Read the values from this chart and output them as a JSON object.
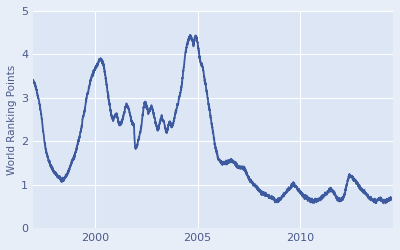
{
  "title": "",
  "ylabel": "World Ranking Points",
  "line_color": "#3d5a9e",
  "axes_facecolor": "#dce6f5",
  "figure_facecolor": "#e8eef8",
  "grid_color": "#ffffff",
  "ylim": [
    0,
    5
  ],
  "yticks": [
    0,
    1,
    2,
    3,
    4,
    5
  ],
  "xticks": [
    2000,
    2005,
    2010
  ],
  "xlim": [
    1997.0,
    2014.5
  ],
  "line_width": 1.3,
  "data_points": [
    [
      1997.0,
      3.4
    ],
    [
      1997.1,
      3.3
    ],
    [
      1997.2,
      3.1
    ],
    [
      1997.3,
      2.9
    ],
    [
      1997.4,
      2.6
    ],
    [
      1997.5,
      2.2
    ],
    [
      1997.6,
      1.85
    ],
    [
      1997.7,
      1.65
    ],
    [
      1997.8,
      1.5
    ],
    [
      1997.9,
      1.4
    ],
    [
      1998.0,
      1.3
    ],
    [
      1998.1,
      1.25
    ],
    [
      1998.2,
      1.2
    ],
    [
      1998.3,
      1.15
    ],
    [
      1998.4,
      1.1
    ],
    [
      1998.5,
      1.12
    ],
    [
      1998.6,
      1.2
    ],
    [
      1998.7,
      1.3
    ],
    [
      1998.8,
      1.4
    ],
    [
      1998.9,
      1.55
    ],
    [
      1999.0,
      1.65
    ],
    [
      1999.1,
      1.8
    ],
    [
      1999.2,
      2.0
    ],
    [
      1999.25,
      2.1
    ],
    [
      1999.3,
      2.2
    ],
    [
      1999.35,
      2.3
    ],
    [
      1999.4,
      2.5
    ],
    [
      1999.45,
      2.6
    ],
    [
      1999.5,
      2.7
    ],
    [
      1999.55,
      2.85
    ],
    [
      1999.6,
      3.0
    ],
    [
      1999.65,
      3.1
    ],
    [
      1999.7,
      3.2
    ],
    [
      1999.75,
      3.3
    ],
    [
      1999.8,
      3.4
    ],
    [
      1999.85,
      3.5
    ],
    [
      1999.9,
      3.55
    ],
    [
      1999.95,
      3.6
    ],
    [
      2000.0,
      3.65
    ],
    [
      2000.05,
      3.7
    ],
    [
      2000.1,
      3.75
    ],
    [
      2000.15,
      3.8
    ],
    [
      2000.2,
      3.85
    ],
    [
      2000.25,
      3.88
    ],
    [
      2000.3,
      3.9
    ],
    [
      2000.35,
      3.85
    ],
    [
      2000.4,
      3.8
    ],
    [
      2000.45,
      3.7
    ],
    [
      2000.5,
      3.55
    ],
    [
      2000.55,
      3.4
    ],
    [
      2000.6,
      3.2
    ],
    [
      2000.65,
      3.05
    ],
    [
      2000.7,
      2.9
    ],
    [
      2000.75,
      2.75
    ],
    [
      2000.8,
      2.6
    ],
    [
      2000.85,
      2.55
    ],
    [
      2000.9,
      2.5
    ],
    [
      2000.95,
      2.55
    ],
    [
      2001.0,
      2.6
    ],
    [
      2001.05,
      2.65
    ],
    [
      2001.1,
      2.55
    ],
    [
      2001.15,
      2.45
    ],
    [
      2001.2,
      2.4
    ],
    [
      2001.25,
      2.38
    ],
    [
      2001.3,
      2.45
    ],
    [
      2001.35,
      2.5
    ],
    [
      2001.4,
      2.6
    ],
    [
      2001.45,
      2.7
    ],
    [
      2001.5,
      2.8
    ],
    [
      2001.55,
      2.85
    ],
    [
      2001.6,
      2.8
    ],
    [
      2001.65,
      2.75
    ],
    [
      2001.7,
      2.65
    ],
    [
      2001.75,
      2.55
    ],
    [
      2001.8,
      2.45
    ],
    [
      2001.85,
      2.4
    ],
    [
      2001.9,
      2.35
    ],
    [
      2001.95,
      1.9
    ],
    [
      2002.0,
      1.85
    ],
    [
      2002.05,
      1.9
    ],
    [
      2002.1,
      2.0
    ],
    [
      2002.15,
      2.1
    ],
    [
      2002.2,
      2.2
    ],
    [
      2002.25,
      2.3
    ],
    [
      2002.3,
      2.5
    ],
    [
      2002.35,
      2.7
    ],
    [
      2002.4,
      2.85
    ],
    [
      2002.45,
      2.9
    ],
    [
      2002.5,
      2.85
    ],
    [
      2002.55,
      2.75
    ],
    [
      2002.6,
      2.65
    ],
    [
      2002.65,
      2.7
    ],
    [
      2002.7,
      2.75
    ],
    [
      2002.75,
      2.8
    ],
    [
      2002.8,
      2.75
    ],
    [
      2002.85,
      2.65
    ],
    [
      2002.9,
      2.55
    ],
    [
      2002.95,
      2.45
    ],
    [
      2003.0,
      2.35
    ],
    [
      2003.05,
      2.25
    ],
    [
      2003.1,
      2.3
    ],
    [
      2003.15,
      2.4
    ],
    [
      2003.2,
      2.5
    ],
    [
      2003.25,
      2.55
    ],
    [
      2003.3,
      2.5
    ],
    [
      2003.35,
      2.45
    ],
    [
      2003.4,
      2.35
    ],
    [
      2003.45,
      2.25
    ],
    [
      2003.5,
      2.2
    ],
    [
      2003.55,
      2.3
    ],
    [
      2003.6,
      2.4
    ],
    [
      2003.65,
      2.45
    ],
    [
      2003.7,
      2.38
    ],
    [
      2003.75,
      2.35
    ],
    [
      2003.8,
      2.4
    ],
    [
      2003.85,
      2.5
    ],
    [
      2003.9,
      2.6
    ],
    [
      2003.95,
      2.7
    ],
    [
      2004.0,
      2.8
    ],
    [
      2004.05,
      2.9
    ],
    [
      2004.1,
      3.0
    ],
    [
      2004.15,
      3.1
    ],
    [
      2004.2,
      3.2
    ],
    [
      2004.25,
      3.4
    ],
    [
      2004.3,
      3.6
    ],
    [
      2004.35,
      3.8
    ],
    [
      2004.4,
      4.0
    ],
    [
      2004.45,
      4.15
    ],
    [
      2004.5,
      4.25
    ],
    [
      2004.55,
      4.35
    ],
    [
      2004.6,
      4.4
    ],
    [
      2004.65,
      4.42
    ],
    [
      2004.7,
      4.38
    ],
    [
      2004.75,
      4.3
    ],
    [
      2004.8,
      4.2
    ],
    [
      2004.85,
      4.35
    ],
    [
      2004.9,
      4.42
    ],
    [
      2004.95,
      4.38
    ],
    [
      2005.0,
      4.25
    ],
    [
      2005.05,
      4.1
    ],
    [
      2005.1,
      3.9
    ],
    [
      2005.15,
      3.8
    ],
    [
      2005.2,
      3.75
    ],
    [
      2005.25,
      3.7
    ],
    [
      2005.3,
      3.55
    ],
    [
      2005.35,
      3.4
    ],
    [
      2005.4,
      3.25
    ],
    [
      2005.45,
      3.1
    ],
    [
      2005.5,
      2.95
    ],
    [
      2005.55,
      2.8
    ],
    [
      2005.6,
      2.65
    ],
    [
      2005.65,
      2.5
    ],
    [
      2005.7,
      2.35
    ],
    [
      2005.75,
      2.2
    ],
    [
      2005.8,
      2.05
    ],
    [
      2005.85,
      1.9
    ],
    [
      2005.9,
      1.8
    ],
    [
      2005.95,
      1.7
    ],
    [
      2006.0,
      1.6
    ],
    [
      2006.1,
      1.55
    ],
    [
      2006.2,
      1.5
    ],
    [
      2006.3,
      1.5
    ],
    [
      2006.4,
      1.5
    ],
    [
      2006.5,
      1.55
    ],
    [
      2006.6,
      1.55
    ],
    [
      2006.7,
      1.55
    ],
    [
      2006.8,
      1.5
    ],
    [
      2006.9,
      1.45
    ],
    [
      2007.0,
      1.4
    ],
    [
      2007.1,
      1.4
    ],
    [
      2007.2,
      1.38
    ],
    [
      2007.3,
      1.35
    ],
    [
      2007.35,
      1.3
    ],
    [
      2007.4,
      1.25
    ],
    [
      2007.45,
      1.2
    ],
    [
      2007.5,
      1.15
    ],
    [
      2007.55,
      1.1
    ],
    [
      2007.6,
      1.08
    ],
    [
      2007.65,
      1.05
    ],
    [
      2007.7,
      1.02
    ],
    [
      2007.75,
      1.0
    ],
    [
      2007.8,
      0.98
    ],
    [
      2007.85,
      0.95
    ],
    [
      2007.9,
      0.93
    ],
    [
      2007.95,
      0.9
    ],
    [
      2008.0,
      0.88
    ],
    [
      2008.05,
      0.85
    ],
    [
      2008.1,
      0.83
    ],
    [
      2008.2,
      0.8
    ],
    [
      2008.3,
      0.78
    ],
    [
      2008.4,
      0.75
    ],
    [
      2008.5,
      0.72
    ],
    [
      2008.6,
      0.7
    ],
    [
      2008.7,
      0.68
    ],
    [
      2008.75,
      0.65
    ],
    [
      2008.8,
      0.63
    ],
    [
      2008.85,
      0.62
    ],
    [
      2008.9,
      0.63
    ],
    [
      2008.95,
      0.65
    ],
    [
      2009.0,
      0.68
    ],
    [
      2009.05,
      0.7
    ],
    [
      2009.1,
      0.72
    ],
    [
      2009.15,
      0.75
    ],
    [
      2009.2,
      0.78
    ],
    [
      2009.25,
      0.8
    ],
    [
      2009.3,
      0.82
    ],
    [
      2009.35,
      0.85
    ],
    [
      2009.4,
      0.88
    ],
    [
      2009.45,
      0.9
    ],
    [
      2009.5,
      0.92
    ],
    [
      2009.55,
      0.95
    ],
    [
      2009.6,
      1.0
    ],
    [
      2009.65,
      1.02
    ],
    [
      2009.7,
      1.0
    ],
    [
      2009.75,
      0.97
    ],
    [
      2009.8,
      0.95
    ],
    [
      2009.85,
      0.9
    ],
    [
      2009.9,
      0.88
    ],
    [
      2009.95,
      0.85
    ],
    [
      2010.0,
      0.83
    ],
    [
      2010.05,
      0.8
    ],
    [
      2010.1,
      0.78
    ],
    [
      2010.15,
      0.75
    ],
    [
      2010.2,
      0.73
    ],
    [
      2010.25,
      0.72
    ],
    [
      2010.3,
      0.7
    ],
    [
      2010.35,
      0.68
    ],
    [
      2010.4,
      0.67
    ],
    [
      2010.45,
      0.65
    ],
    [
      2010.5,
      0.64
    ],
    [
      2010.55,
      0.63
    ],
    [
      2010.6,
      0.62
    ],
    [
      2010.65,
      0.62
    ],
    [
      2010.7,
      0.63
    ],
    [
      2010.75,
      0.64
    ],
    [
      2010.8,
      0.65
    ],
    [
      2010.85,
      0.66
    ],
    [
      2010.9,
      0.67
    ],
    [
      2010.95,
      0.68
    ],
    [
      2011.0,
      0.7
    ],
    [
      2011.05,
      0.72
    ],
    [
      2011.1,
      0.73
    ],
    [
      2011.15,
      0.75
    ],
    [
      2011.2,
      0.78
    ],
    [
      2011.25,
      0.8
    ],
    [
      2011.3,
      0.82
    ],
    [
      2011.35,
      0.85
    ],
    [
      2011.4,
      0.88
    ],
    [
      2011.45,
      0.9
    ],
    [
      2011.5,
      0.88
    ],
    [
      2011.55,
      0.85
    ],
    [
      2011.6,
      0.83
    ],
    [
      2011.65,
      0.8
    ],
    [
      2011.7,
      0.75
    ],
    [
      2011.75,
      0.7
    ],
    [
      2011.8,
      0.68
    ],
    [
      2011.85,
      0.67
    ],
    [
      2011.9,
      0.65
    ],
    [
      2011.95,
      0.64
    ],
    [
      2012.0,
      0.65
    ],
    [
      2012.05,
      0.68
    ],
    [
      2012.1,
      0.72
    ],
    [
      2012.15,
      0.8
    ],
    [
      2012.2,
      0.9
    ],
    [
      2012.25,
      1.0
    ],
    [
      2012.3,
      1.1
    ],
    [
      2012.35,
      1.18
    ],
    [
      2012.4,
      1.22
    ],
    [
      2012.45,
      1.2
    ],
    [
      2012.5,
      1.18
    ],
    [
      2012.55,
      1.15
    ],
    [
      2012.6,
      1.12
    ],
    [
      2012.65,
      1.1
    ],
    [
      2012.7,
      1.08
    ],
    [
      2012.75,
      1.05
    ],
    [
      2012.8,
      1.0
    ],
    [
      2012.85,
      0.95
    ],
    [
      2012.9,
      0.92
    ],
    [
      2012.95,
      0.9
    ],
    [
      2013.0,
      0.88
    ],
    [
      2013.05,
      0.85
    ],
    [
      2013.1,
      0.83
    ],
    [
      2013.15,
      0.8
    ],
    [
      2013.2,
      0.78
    ],
    [
      2013.25,
      0.75
    ],
    [
      2013.3,
      0.73
    ],
    [
      2013.35,
      0.7
    ],
    [
      2013.4,
      0.68
    ],
    [
      2013.45,
      0.66
    ],
    [
      2013.5,
      0.65
    ],
    [
      2013.55,
      0.63
    ],
    [
      2013.6,
      0.62
    ],
    [
      2013.65,
      0.62
    ],
    [
      2013.7,
      0.63
    ],
    [
      2013.75,
      0.65
    ],
    [
      2013.8,
      0.67
    ],
    [
      2013.85,
      0.68
    ],
    [
      2013.9,
      0.67
    ],
    [
      2013.95,
      0.65
    ],
    [
      2014.0,
      0.63
    ],
    [
      2014.1,
      0.62
    ],
    [
      2014.2,
      0.63
    ],
    [
      2014.3,
      0.65
    ],
    [
      2014.4,
      0.67
    ]
  ]
}
